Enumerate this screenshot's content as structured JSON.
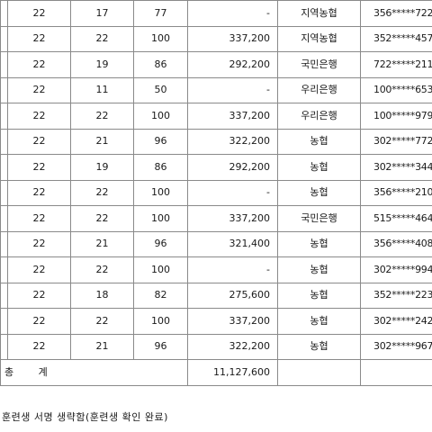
{
  "table": {
    "rows": [
      {
        "c1": "22",
        "c2": "17",
        "c3": "77",
        "amount": "-",
        "bank": "지역농협",
        "account": "356*****722"
      },
      {
        "c1": "22",
        "c2": "22",
        "c3": "100",
        "amount": "337,200",
        "bank": "지역농협",
        "account": "352*****457"
      },
      {
        "c1": "22",
        "c2": "19",
        "c3": "86",
        "amount": "292,200",
        "bank": "국민은행",
        "account": "722*****211"
      },
      {
        "c1": "22",
        "c2": "11",
        "c3": "50",
        "amount": "-",
        "bank": "우리은행",
        "account": "100*****653"
      },
      {
        "c1": "22",
        "c2": "22",
        "c3": "100",
        "amount": "337,200",
        "bank": "우리은행",
        "account": "100*****979"
      },
      {
        "c1": "22",
        "c2": "21",
        "c3": "96",
        "amount": "322,200",
        "bank": "농협",
        "account": "302*****772"
      },
      {
        "c1": "22",
        "c2": "19",
        "c3": "86",
        "amount": "292,200",
        "bank": "농협",
        "account": "302*****344"
      },
      {
        "c1": "22",
        "c2": "22",
        "c3": "100",
        "amount": "-",
        "bank": "농협",
        "account": "356*****210"
      },
      {
        "c1": "22",
        "c2": "22",
        "c3": "100",
        "amount": "337,200",
        "bank": "국민은행",
        "account": "515*****464"
      },
      {
        "c1": "22",
        "c2": "21",
        "c3": "96",
        "amount": "321,400",
        "bank": "농협",
        "account": "356*****408"
      },
      {
        "c1": "22",
        "c2": "22",
        "c3": "100",
        "amount": "-",
        "bank": "농협",
        "account": "302*****994"
      },
      {
        "c1": "22",
        "c2": "18",
        "c3": "82",
        "amount": "275,600",
        "bank": "농협",
        "account": "352*****223"
      },
      {
        "c1": "22",
        "c2": "22",
        "c3": "100",
        "amount": "337,200",
        "bank": "농협",
        "account": "302*****242"
      },
      {
        "c1": "22",
        "c2": "21",
        "c3": "96",
        "amount": "322,200",
        "bank": "농협",
        "account": "302*****967"
      }
    ],
    "total_label": "총 계",
    "total_amount": "11,127,600"
  },
  "footnote": "훈련생 서명 생략함(훈련생 확인 완료)"
}
